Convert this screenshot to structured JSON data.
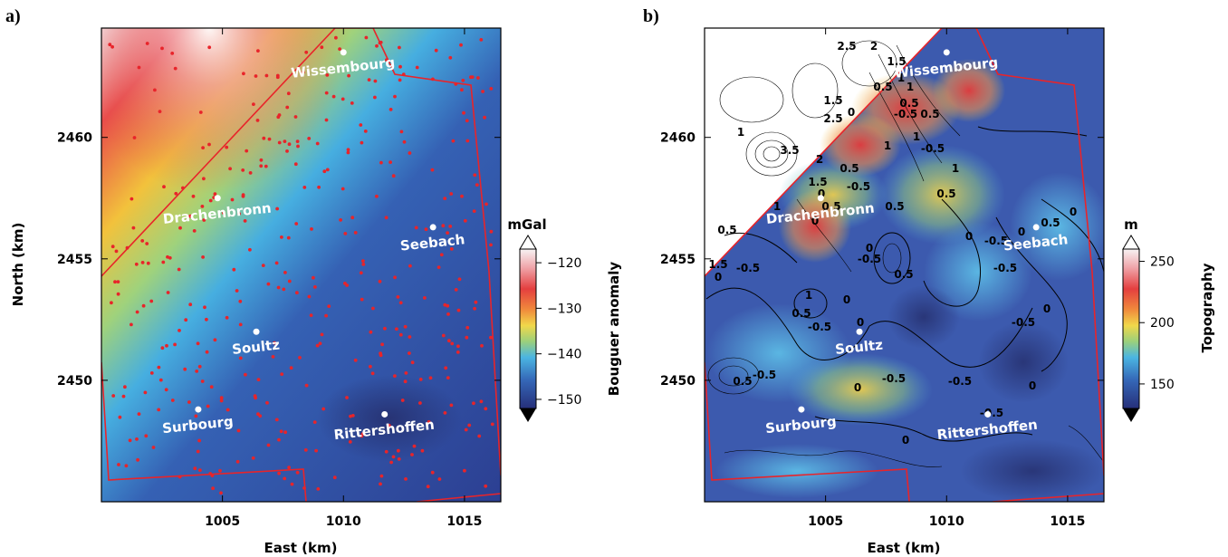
{
  "chart_data": [
    {
      "type": "heatmap",
      "panel_label": "a)",
      "xlabel": "East (km)",
      "ylabel": "North (km)",
      "xlim": [
        1000,
        1016.5
      ],
      "ylim": [
        2445,
        2464.5
      ],
      "x_ticks": [
        "1005",
        "1010",
        "1015"
      ],
      "y_ticks": [
        "2450",
        "2455",
        "2460"
      ],
      "colorbar": {
        "label": "Bouguer anomaly",
        "unit": "mGal",
        "range": [
          -152,
          -117
        ],
        "ticks": [
          "−120",
          "−130",
          "−140",
          "−150"
        ],
        "tick_values": [
          -120,
          -130,
          -140,
          -150
        ]
      },
      "grid": false,
      "overlays": [
        "survey boundary (red line)",
        "gravity stations (red dots)"
      ],
      "cities": [
        {
          "name": "Wissembourg",
          "x": 1010.0,
          "y": 2463.5
        },
        {
          "name": "Drachenbronn",
          "x": 1004.8,
          "y": 2457.5
        },
        {
          "name": "Seebach",
          "x": 1013.7,
          "y": 2456.3
        },
        {
          "name": "Soultz",
          "x": 1006.4,
          "y": 2452.0
        },
        {
          "name": "Surbourg",
          "x": 1004.0,
          "y": 2448.8
        },
        {
          "name": "Rittershoffen",
          "x": 1011.7,
          "y": 2448.6
        }
      ]
    },
    {
      "type": "heatmap",
      "panel_label": "b)",
      "xlabel": "East (km)",
      "ylabel": "",
      "xlim": [
        1000,
        1016.5
      ],
      "ylim": [
        2445,
        2464.5
      ],
      "x_ticks": [
        "1005",
        "1010",
        "1015"
      ],
      "y_ticks": [
        "2450",
        "2455",
        "2460"
      ],
      "colorbar": {
        "label": "Topography",
        "unit": "m",
        "range": [
          130,
          260
        ],
        "ticks": [
          "250",
          "200",
          "150"
        ],
        "tick_values": [
          250,
          200,
          150
        ]
      },
      "grid": false,
      "contour_labels": [
        "2.5",
        "2",
        "1.5",
        "1",
        "0.5",
        "1",
        "-0.5",
        "0",
        "1.5",
        "2.5",
        "0.5",
        "1",
        "3.5",
        "2",
        "1.5",
        "0",
        "0.5",
        "-0.5",
        "0.5",
        "1",
        "1",
        "0.5",
        "-0.5",
        "1.5",
        "0",
        "1",
        "0.5",
        "0",
        "-0.5",
        "0.5",
        "0",
        "-0.5",
        "0",
        "0.5",
        "1",
        "0.5",
        "-0.5",
        "1",
        "0.5",
        "-0.5",
        "0",
        "0",
        "-0.5",
        "0",
        "0.5",
        "-0.5",
        "0",
        "0",
        "-0.5",
        "-0.5",
        "0",
        "0",
        "0.5",
        "-0.5",
        "-0.5",
        "0"
      ],
      "cities": [
        {
          "name": "Wissembourg",
          "x": 1010.0,
          "y": 2463.5
        },
        {
          "name": "Drachenbronn",
          "x": 1004.8,
          "y": 2457.5
        },
        {
          "name": "Seebach",
          "x": 1013.7,
          "y": 2456.3
        },
        {
          "name": "Soultz",
          "x": 1006.4,
          "y": 2452.0
        },
        {
          "name": "Surbourg",
          "x": 1004.0,
          "y": 2448.8
        },
        {
          "name": "Rittershoffen",
          "x": 1011.7,
          "y": 2448.6
        }
      ]
    }
  ]
}
